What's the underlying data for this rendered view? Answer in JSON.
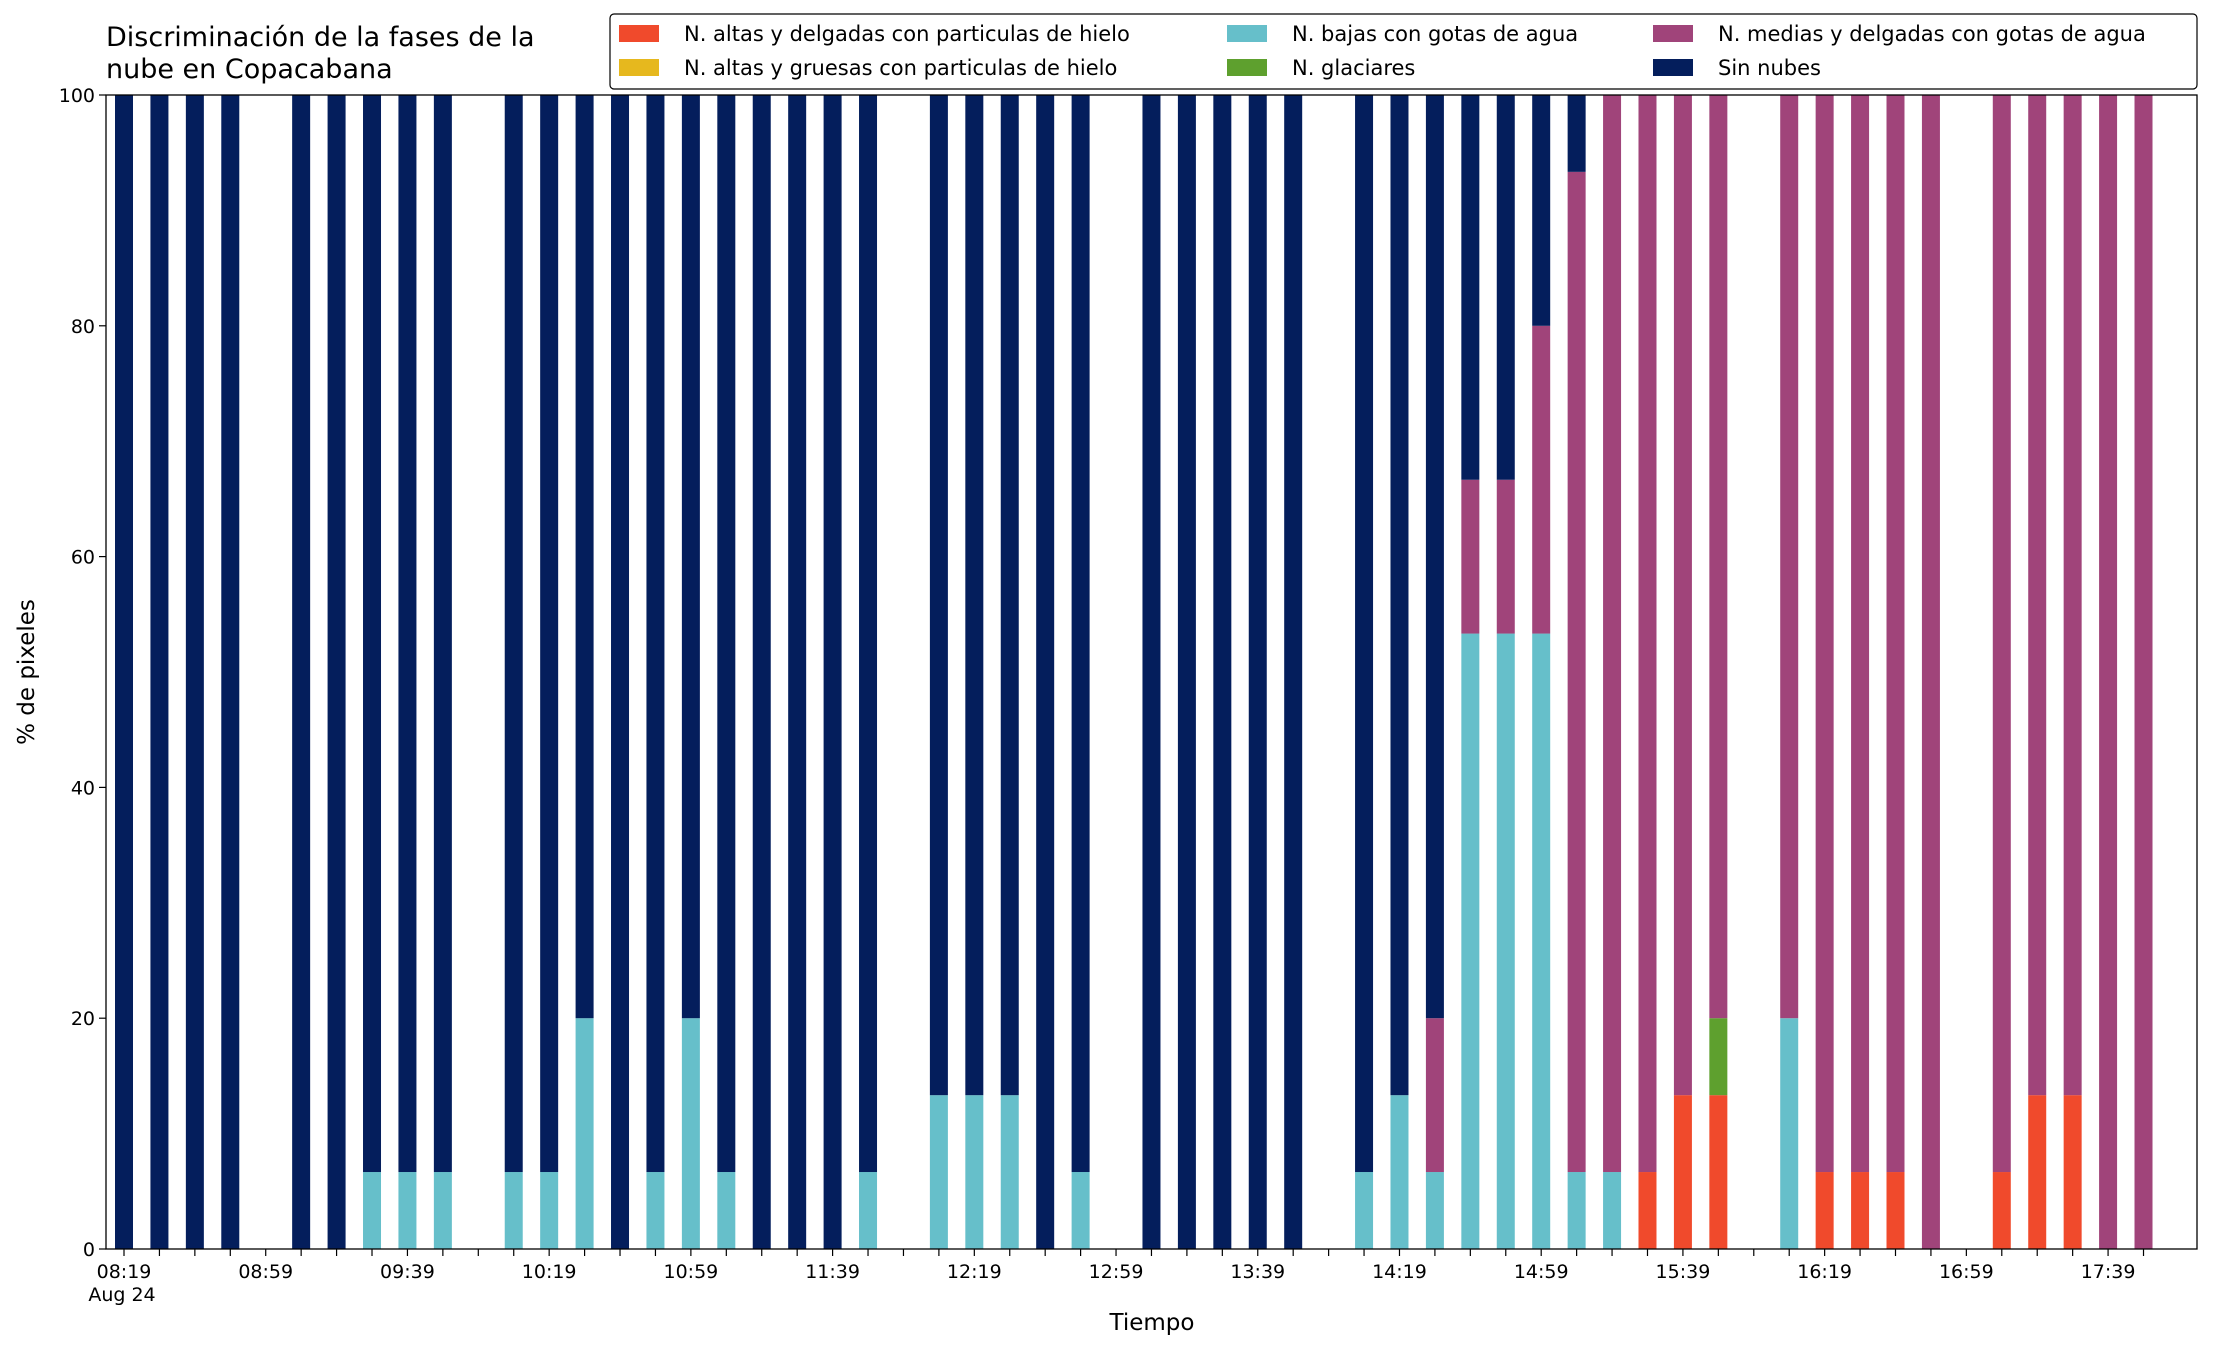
{
  "chart_data": {
    "type": "stacked_bar",
    "title": "Discriminación de la fases de la nube en Copacabana",
    "x_label": "Tiempo",
    "y_label": "% de pixeles",
    "x_sublabel": "Aug 24",
    "categories": [
      "08:19",
      null,
      null,
      null,
      "08:59",
      null,
      null,
      null,
      "09:39",
      null,
      null,
      null,
      "10:19",
      null,
      null,
      null,
      "10:59",
      null,
      null,
      null,
      "11:39",
      null,
      null,
      null,
      "12:19",
      null,
      null,
      null,
      "12:59",
      null,
      null,
      null,
      "13:39",
      null,
      null,
      null,
      "14:19",
      null,
      null,
      null,
      "14:59",
      null,
      null,
      null,
      "15:39",
      null,
      null,
      null,
      "16:19",
      null,
      null,
      null,
      "16:59",
      null,
      null,
      null,
      "17:39",
      null
    ],
    "ylim": [
      0,
      100
    ],
    "yticks": [
      0,
      20,
      40,
      60,
      80,
      100
    ],
    "legend": "top-right",
    "series": [
      {
        "name": "N. altas y delgadas con particulas de hielo",
        "color": "#f04a2c",
        "values": [
          0,
          0,
          0,
          0,
          null,
          0,
          0,
          0,
          0,
          0,
          null,
          0,
          0,
          0,
          0,
          0,
          0,
          0,
          0,
          0,
          0,
          0,
          null,
          0,
          0,
          0,
          0,
          0,
          null,
          0,
          0,
          0,
          0,
          0,
          null,
          0,
          0,
          0,
          0,
          0,
          0,
          0,
          0,
          6.67,
          13.33,
          13.33,
          null,
          0,
          6.67,
          6.67,
          6.67,
          0,
          null,
          6.67,
          13.33,
          13.33,
          0,
          0
        ]
      },
      {
        "name": "N. altas y gruesas con particulas de hielo",
        "color": "#e6b81e",
        "values": [
          0,
          0,
          0,
          0,
          null,
          0,
          0,
          0,
          0,
          0,
          null,
          0,
          0,
          0,
          0,
          0,
          0,
          0,
          0,
          0,
          0,
          0,
          null,
          0,
          0,
          0,
          0,
          0,
          null,
          0,
          0,
          0,
          0,
          0,
          null,
          0,
          0,
          0,
          0,
          0,
          0,
          0,
          0,
          0,
          0,
          0,
          null,
          0,
          0,
          0,
          0,
          0,
          null,
          0,
          0,
          0,
          0,
          0
        ]
      },
      {
        "name": "N. bajas con gotas de agua",
        "color": "#66bfca",
        "values": [
          0,
          0,
          0,
          0,
          null,
          0,
          0,
          6.67,
          6.67,
          6.67,
          null,
          6.67,
          6.67,
          20,
          0,
          6.67,
          20,
          6.67,
          0,
          0,
          0,
          6.67,
          null,
          13.33,
          13.33,
          13.33,
          0,
          6.67,
          null,
          0,
          0,
          0,
          0,
          0,
          null,
          6.67,
          13.33,
          6.67,
          53.33,
          53.33,
          53.33,
          6.67,
          6.67,
          0,
          0,
          0,
          null,
          20,
          0,
          0,
          0,
          0,
          null,
          0,
          0,
          0,
          0,
          0
        ]
      },
      {
        "name": "N. glaciares",
        "color": "#5ea02e",
        "values": [
          0,
          0,
          0,
          0,
          null,
          0,
          0,
          0,
          0,
          0,
          null,
          0,
          0,
          0,
          0,
          0,
          0,
          0,
          0,
          0,
          0,
          0,
          null,
          0,
          0,
          0,
          0,
          0,
          null,
          0,
          0,
          0,
          0,
          0,
          null,
          0,
          0,
          0,
          0,
          0,
          0,
          0,
          0,
          0,
          0,
          6.67,
          null,
          0,
          0,
          0,
          0,
          0,
          null,
          0,
          0,
          0,
          0,
          0
        ]
      },
      {
        "name": "N. medias y delgadas con gotas de agua",
        "color": "#a0447a",
        "values": [
          0,
          0,
          0,
          0,
          null,
          0,
          0,
          0,
          0,
          0,
          null,
          0,
          0,
          0,
          0,
          0,
          0,
          0,
          0,
          0,
          0,
          0,
          null,
          0,
          0,
          0,
          0,
          0,
          null,
          0,
          0,
          0,
          0,
          0,
          null,
          0,
          0,
          13.33,
          13.33,
          13.33,
          26.67,
          86.67,
          93.33,
          93.33,
          86.67,
          80,
          null,
          80,
          93.33,
          93.33,
          93.33,
          100,
          null,
          93.33,
          86.67,
          86.67,
          100,
          100
        ]
      },
      {
        "name": "Sin nubes",
        "color": "#041e5c",
        "values": [
          100,
          100,
          100,
          100,
          null,
          100,
          100,
          93.33,
          93.33,
          93.33,
          null,
          93.33,
          93.33,
          80,
          100,
          93.33,
          80,
          93.33,
          100,
          100,
          100,
          93.33,
          null,
          86.67,
          86.67,
          86.67,
          100,
          93.33,
          null,
          100,
          100,
          100,
          100,
          100,
          null,
          93.33,
          86.67,
          80,
          33.33,
          33.33,
          20,
          6.67,
          0,
          0,
          0,
          0,
          null,
          0,
          0,
          0,
          0,
          0,
          null,
          0,
          0,
          0,
          0,
          0
        ]
      }
    ]
  }
}
